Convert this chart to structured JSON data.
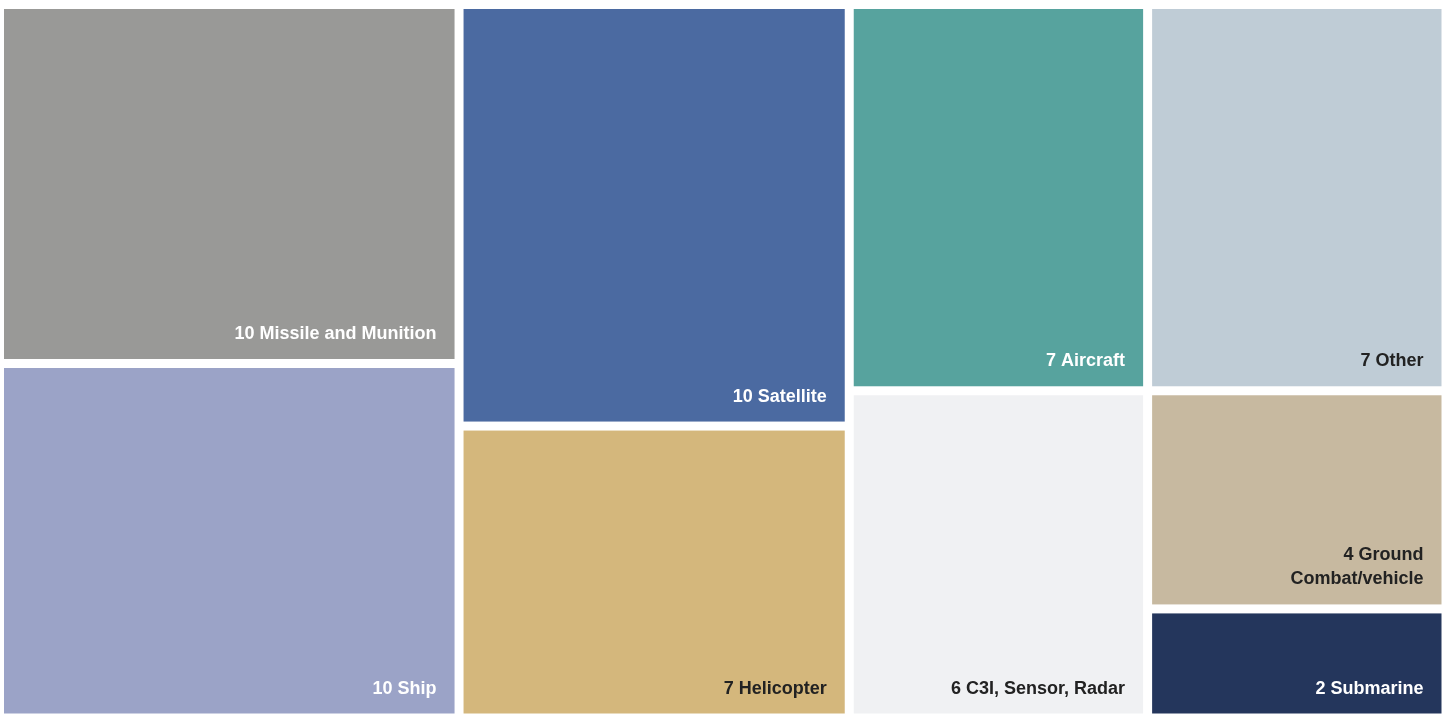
{
  "chart_data": {
    "type": "other",
    "categories": [
      "Missile and Munition",
      "Ship",
      "Satellite",
      "Helicopter",
      "Aircraft",
      "C3I, Sensor, Radar",
      "Other",
      "Ground Combat/vehicle",
      "Submarine"
    ],
    "values": [
      10,
      10,
      10,
      7,
      7,
      6,
      7,
      4,
      2
    ],
    "colors": [
      "#999997",
      "#9ba3c7",
      "#4b6aa1",
      "#d4b77c",
      "#57a39e",
      "#f0f1f3",
      "#bfccd6",
      "#c7b9a0",
      "#24365c"
    ],
    "data_labels": true
  }
}
